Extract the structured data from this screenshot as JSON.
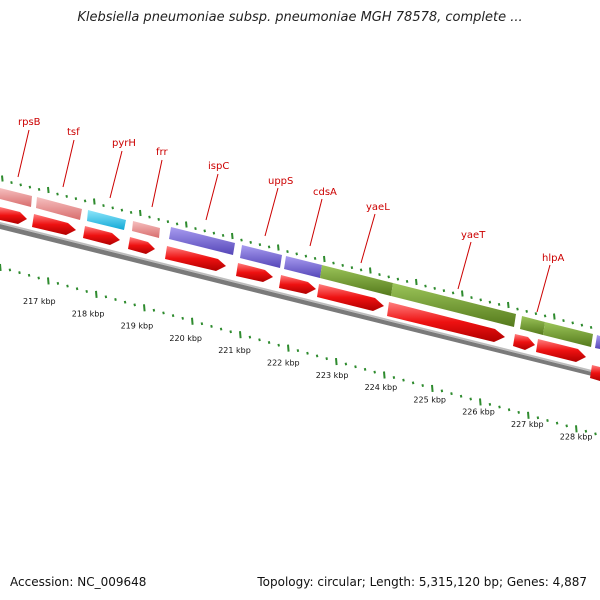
{
  "title": "Klebsiella pneumoniae subsp. pneumoniae MGH 78578, complete ...",
  "accession": "Accession: NC_009648",
  "stats": "Topology: circular; Length: 5,315,120 bp; Genes: 4,887",
  "colors": {
    "rRNA_like_pink": "#e98a8a",
    "ribosome_cyan": "#22c4ea",
    "metabolism_purple": "#6f5fd0",
    "membrane_olive": "#6f9a2a",
    "cds_red": "#ee1111",
    "label_red": "#cc0000",
    "tick_green": "#2e8b2e",
    "backbone_gray": "#777777"
  },
  "genes": [
    {
      "name": "rpsB"
    },
    {
      "name": "tsf"
    },
    {
      "name": "pyrH"
    },
    {
      "name": "frr"
    },
    {
      "name": "ispC"
    },
    {
      "name": "uppS"
    },
    {
      "name": "cdsA"
    },
    {
      "name": "yaeL"
    },
    {
      "name": "yaeT"
    },
    {
      "name": "hlpA"
    }
  ],
  "kbp_labels": [
    "217 kbp",
    "218 kbp",
    "219 kbp",
    "220 kbp",
    "221 kbp",
    "222 kbp",
    "223 kbp",
    "224 kbp",
    "225 kbp",
    "226 kbp",
    "227 kbp",
    "228 kbp"
  ]
}
